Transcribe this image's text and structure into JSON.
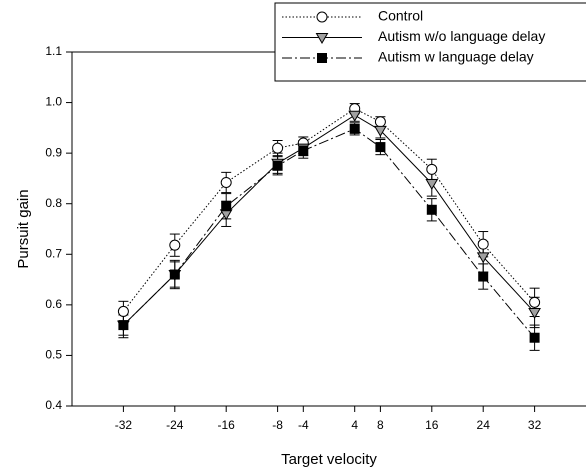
{
  "chart_data": {
    "type": "line",
    "x_label": "Target velocity",
    "y_label": "Pursuit gain",
    "x": [
      -32,
      -24,
      -16,
      -8,
      -4,
      4,
      8,
      16,
      24,
      32
    ],
    "series": [
      {
        "name": "Control",
        "color": "#000000",
        "line_style": "dotted",
        "marker": "circle",
        "marker_fill": "#ffffff",
        "values": [
          0.587,
          0.718,
          0.842,
          0.91,
          0.92,
          0.988,
          0.962,
          0.868,
          0.72,
          0.605
        ],
        "errors": [
          0.02,
          0.022,
          0.02,
          0.015,
          0.012,
          0.01,
          0.01,
          0.02,
          0.025,
          0.028
        ]
      },
      {
        "name": "Autism w/o language delay",
        "color": "#000000",
        "line_style": "solid",
        "marker": "triangle-down",
        "marker_fill": "#a0a0a0",
        "values": [
          0.56,
          0.66,
          0.78,
          0.88,
          0.91,
          0.975,
          0.945,
          0.84,
          0.695,
          0.585
        ],
        "errors": [
          0.02,
          0.025,
          0.025,
          0.02,
          0.015,
          0.012,
          0.015,
          0.025,
          0.03,
          0.03
        ]
      },
      {
        "name": "Autism w language delay",
        "color": "#000000",
        "line_style": "dashdot",
        "marker": "square",
        "marker_fill": "#000000",
        "values": [
          0.56,
          0.66,
          0.795,
          0.875,
          0.905,
          0.948,
          0.912,
          0.788,
          0.656,
          0.535
        ],
        "errors": [
          0.025,
          0.028,
          0.025,
          0.018,
          0.015,
          0.012,
          0.015,
          0.022,
          0.025,
          0.025
        ]
      }
    ],
    "xlim": [
      -40,
      40
    ],
    "ylim": [
      0.4,
      1.1
    ],
    "xticks": [
      -32,
      -24,
      -16,
      -8,
      -4,
      4,
      8,
      16,
      24,
      32
    ],
    "yticks": [
      {
        "value": 0.4,
        "label": "0.4"
      },
      {
        "value": 0.5,
        "label": "0.5"
      },
      {
        "value": 0.6,
        "label": "0.6"
      },
      {
        "value": 0.7,
        "label": "0.7"
      },
      {
        "value": 0.8,
        "label": "0.8"
      },
      {
        "value": 0.9,
        "label": "0.9"
      },
      {
        "value": 1.0,
        "label": "1.0"
      },
      {
        "value": 1.1,
        "label": "1.1"
      }
    ],
    "legend": "top-right"
  }
}
